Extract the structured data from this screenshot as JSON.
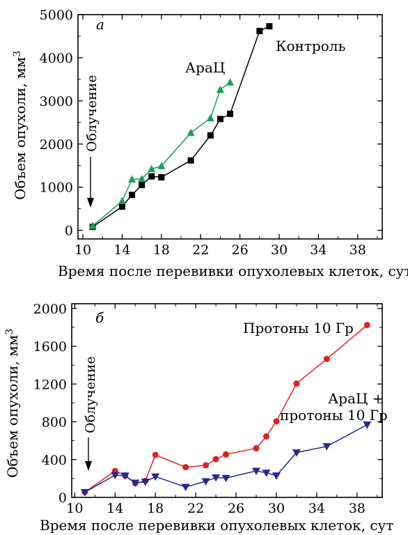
{
  "chart_data": [
    {
      "type": "line",
      "panel_label": "а",
      "xlabel": "Время после перевивки опухолевых клеток, сут",
      "ylabel": "Объем опухоли, мм",
      "ylabel_sup": "3",
      "xlim": [
        9.5,
        40.5
      ],
      "ylim": [
        -200,
        5000
      ],
      "xticks": [
        10,
        14,
        18,
        22,
        26,
        30,
        34,
        38
      ],
      "yticks": [
        0,
        1000,
        2000,
        3000,
        4000,
        5000
      ],
      "annotation": "Облучение",
      "arrow_x": 11,
      "series": [
        {
          "name": "Контроль",
          "color": "#000000",
          "marker": "square",
          "x": [
            11,
            14,
            15,
            16,
            17,
            18,
            21,
            23,
            24,
            25,
            28,
            29
          ],
          "y": [
            80,
            550,
            820,
            1050,
            1250,
            1230,
            1620,
            2200,
            2580,
            2700,
            4620,
            4730
          ]
        },
        {
          "name": "АраЦ",
          "color": "#17a05a",
          "marker": "triangle-up",
          "x": [
            11,
            14,
            15,
            16,
            17,
            18,
            21,
            23,
            24,
            25
          ],
          "y": [
            100,
            680,
            1180,
            1190,
            1420,
            1490,
            2260,
            2600,
            3260,
            3430
          ]
        }
      ]
    },
    {
      "type": "line",
      "panel_label": "б",
      "xlabel": "Время после перевивки опухолевых клеток, сут",
      "ylabel": "Объем опухоли, мм",
      "ylabel_sup": "3",
      "xlim": [
        9.7,
        40.5
      ],
      "ylim": [
        0,
        2050
      ],
      "xticks": [
        10,
        14,
        18,
        22,
        26,
        30,
        34,
        38
      ],
      "yticks": [
        0,
        400,
        800,
        1200,
        1600,
        2000
      ],
      "annotation": "Облучение",
      "arrow_x": 11,
      "series": [
        {
          "name": "Протоны  10 Гр",
          "color": "#e02222",
          "marker": "circle",
          "x": [
            11,
            14,
            15,
            16,
            17,
            18,
            21,
            23,
            24,
            25,
            28,
            29,
            30,
            32,
            35,
            39
          ],
          "y": [
            55,
            280,
            230,
            150,
            175,
            450,
            320,
            340,
            405,
            455,
            520,
            645,
            805,
            1205,
            1465,
            1825
          ]
        },
        {
          "name_line1": "АраЦ +",
          "name_line2": "протоны  10 Гр",
          "color": "#252a8c",
          "marker": "triangle-down",
          "x": [
            11,
            14,
            15,
            16,
            17,
            18,
            21,
            23,
            24,
            25,
            28,
            29,
            30,
            32,
            35,
            39
          ],
          "y": [
            55,
            235,
            230,
            155,
            165,
            220,
            110,
            170,
            210,
            205,
            280,
            260,
            230,
            475,
            540,
            770
          ]
        }
      ]
    }
  ]
}
